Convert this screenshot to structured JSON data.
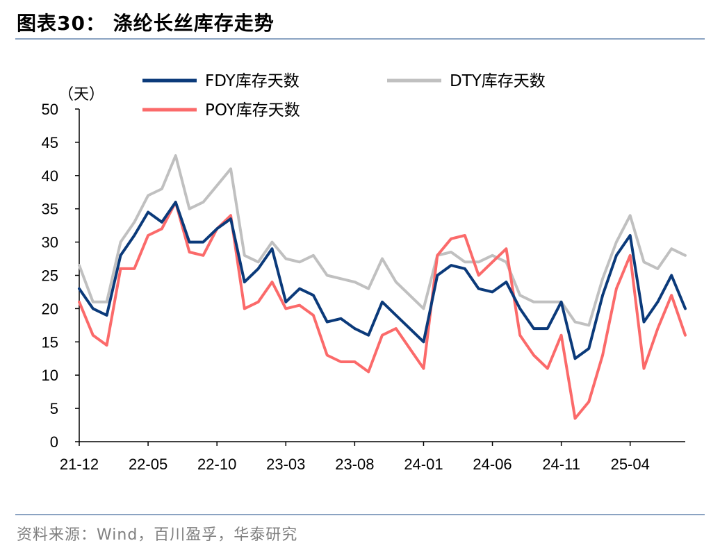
{
  "title": "图表30：  涤纶长丝库存走势",
  "source": "资料来源：Wind，百川盈孚，华泰研究",
  "colors": {
    "FDY": "#0b3a7a",
    "DTY": "#c0c0c0",
    "POY": "#fb6a6a",
    "axis": "#000000",
    "rule": "#8ba3c2"
  },
  "chart_data": {
    "type": "line",
    "ylabel": "（天）",
    "ylim": [
      0,
      50
    ],
    "yticks": [
      0,
      5,
      10,
      15,
      20,
      25,
      30,
      35,
      40,
      45,
      50
    ],
    "xlim": [
      "2021-12",
      "2025-08"
    ],
    "xtick_labels": [
      "21-12",
      "22-05",
      "22-10",
      "23-03",
      "23-08",
      "24-01",
      "24-06",
      "24-11",
      "25-04"
    ],
    "grid": false,
    "legend_position": "top",
    "series": [
      {
        "name": "FDY库存天数",
        "points": [
          [
            "2021-12",
            23
          ],
          [
            "2022-01",
            20
          ],
          [
            "2022-02",
            19
          ],
          [
            "2022-03",
            28
          ],
          [
            "2022-04",
            31
          ],
          [
            "2022-05",
            34.5
          ],
          [
            "2022-06",
            33
          ],
          [
            "2022-07",
            36
          ],
          [
            "2022-08",
            30
          ],
          [
            "2022-09",
            30
          ],
          [
            "2022-10",
            32
          ],
          [
            "2022-11",
            33.5
          ],
          [
            "2022-12",
            24
          ],
          [
            "2023-01",
            26
          ],
          [
            "2023-02",
            29
          ],
          [
            "2023-03",
            21
          ],
          [
            "2023-04",
            23
          ],
          [
            "2023-05",
            22
          ],
          [
            "2023-06",
            18
          ],
          [
            "2023-07",
            18.5
          ],
          [
            "2023-08",
            17
          ],
          [
            "2023-09",
            16
          ],
          [
            "2023-10",
            21
          ],
          [
            "2023-11",
            19
          ],
          [
            "2023-12",
            17
          ],
          [
            "2024-01",
            15
          ],
          [
            "2024-02",
            25
          ],
          [
            "2024-03",
            26.5
          ],
          [
            "2024-04",
            26
          ],
          [
            "2024-05",
            23
          ],
          [
            "2024-06",
            22.5
          ],
          [
            "2024-07",
            24
          ],
          [
            "2024-08",
            20
          ],
          [
            "2024-09",
            17
          ],
          [
            "2024-10",
            17
          ],
          [
            "2024-11",
            21
          ],
          [
            "2024-12",
            12.5
          ],
          [
            "2025-01",
            14
          ],
          [
            "2025-02",
            22
          ],
          [
            "2025-03",
            28
          ],
          [
            "2025-04",
            31
          ],
          [
            "2025-05",
            18
          ],
          [
            "2025-06",
            21
          ],
          [
            "2025-07",
            25
          ],
          [
            "2025-08",
            20
          ]
        ]
      },
      {
        "name": "DTY库存天数",
        "points": [
          [
            "2021-12",
            26.5
          ],
          [
            "2022-01",
            21
          ],
          [
            "2022-02",
            21
          ],
          [
            "2022-03",
            30
          ],
          [
            "2022-04",
            33
          ],
          [
            "2022-05",
            37
          ],
          [
            "2022-06",
            38
          ],
          [
            "2022-07",
            43
          ],
          [
            "2022-08",
            35
          ],
          [
            "2022-09",
            36
          ],
          [
            "2022-10",
            38.5
          ],
          [
            "2022-11",
            41
          ],
          [
            "2022-12",
            28
          ],
          [
            "2023-01",
            27
          ],
          [
            "2023-02",
            30
          ],
          [
            "2023-03",
            27.5
          ],
          [
            "2023-04",
            27
          ],
          [
            "2023-05",
            28
          ],
          [
            "2023-06",
            25
          ],
          [
            "2023-07",
            24.5
          ],
          [
            "2023-08",
            24
          ],
          [
            "2023-09",
            23
          ],
          [
            "2023-10",
            27.5
          ],
          [
            "2023-11",
            24
          ],
          [
            "2023-12",
            22
          ],
          [
            "2024-01",
            20
          ],
          [
            "2024-02",
            28
          ],
          [
            "2024-03",
            28.5
          ],
          [
            "2024-04",
            27
          ],
          [
            "2024-05",
            27
          ],
          [
            "2024-06",
            28
          ],
          [
            "2024-07",
            27
          ],
          [
            "2024-08",
            22
          ],
          [
            "2024-09",
            21
          ],
          [
            "2024-10",
            21
          ],
          [
            "2024-11",
            21
          ],
          [
            "2024-12",
            18
          ],
          [
            "2025-01",
            17.5
          ],
          [
            "2025-02",
            24.5
          ],
          [
            "2025-03",
            30
          ],
          [
            "2025-04",
            34
          ],
          [
            "2025-05",
            27
          ],
          [
            "2025-06",
            26
          ],
          [
            "2025-07",
            29
          ],
          [
            "2025-08",
            28
          ]
        ]
      },
      {
        "name": "POY库存天数",
        "points": [
          [
            "2021-12",
            21
          ],
          [
            "2022-01",
            16
          ],
          [
            "2022-02",
            14.5
          ],
          [
            "2022-03",
            26
          ],
          [
            "2022-04",
            26
          ],
          [
            "2022-05",
            31
          ],
          [
            "2022-06",
            32
          ],
          [
            "2022-07",
            36
          ],
          [
            "2022-08",
            28.5
          ],
          [
            "2022-09",
            28
          ],
          [
            "2022-10",
            32
          ],
          [
            "2022-11",
            34
          ],
          [
            "2022-12",
            20
          ],
          [
            "2023-01",
            21
          ],
          [
            "2023-02",
            24
          ],
          [
            "2023-03",
            20
          ],
          [
            "2023-04",
            20.5
          ],
          [
            "2023-05",
            19
          ],
          [
            "2023-06",
            13
          ],
          [
            "2023-07",
            12
          ],
          [
            "2023-08",
            12
          ],
          [
            "2023-09",
            10.5
          ],
          [
            "2023-10",
            16
          ],
          [
            "2023-11",
            17
          ],
          [
            "2023-12",
            14
          ],
          [
            "2024-01",
            11
          ],
          [
            "2024-02",
            28
          ],
          [
            "2024-03",
            30.5
          ],
          [
            "2024-04",
            31
          ],
          [
            "2024-05",
            25
          ],
          [
            "2024-06",
            27
          ],
          [
            "2024-07",
            29
          ],
          [
            "2024-08",
            16
          ],
          [
            "2024-09",
            13
          ],
          [
            "2024-10",
            11
          ],
          [
            "2024-11",
            16
          ],
          [
            "2024-12",
            3.5
          ],
          [
            "2025-01",
            6
          ],
          [
            "2025-02",
            13
          ],
          [
            "2025-03",
            23
          ],
          [
            "2025-04",
            28
          ],
          [
            "2025-05",
            11
          ],
          [
            "2025-06",
            17
          ],
          [
            "2025-07",
            22
          ],
          [
            "2025-08",
            16
          ]
        ]
      }
    ]
  }
}
